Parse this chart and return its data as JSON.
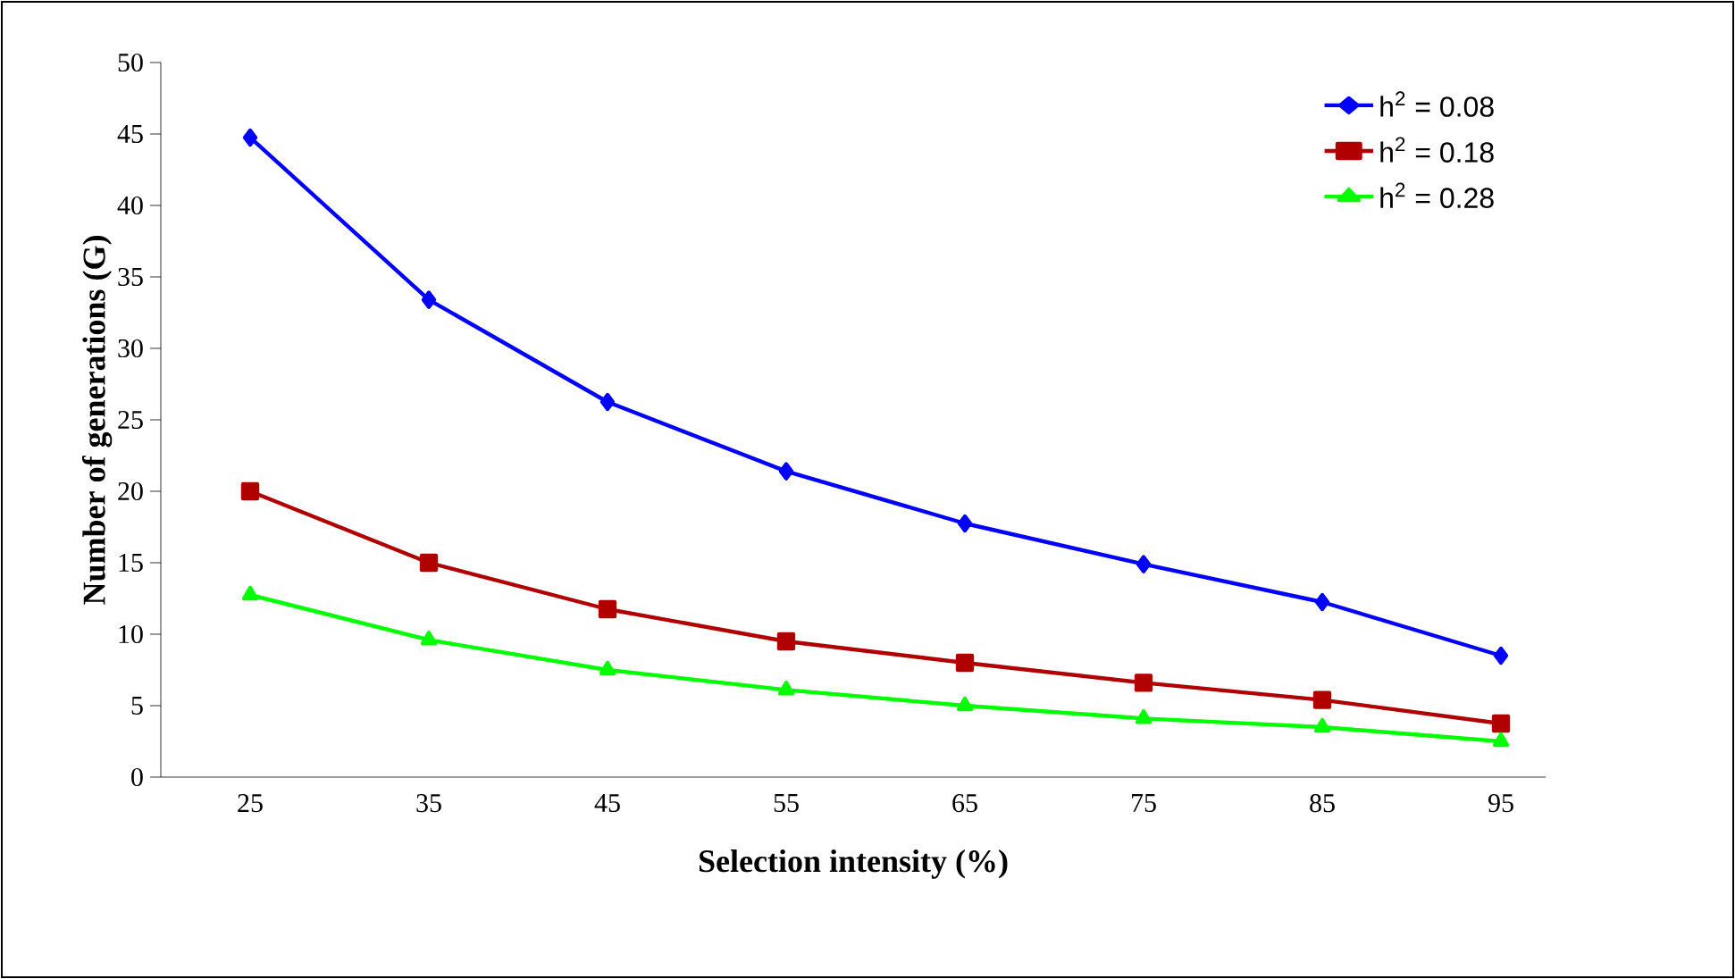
{
  "chart_data": {
    "type": "line",
    "xlabel": "Selection intensity (%)",
    "ylabel": "Number of generations (G)",
    "categories": [
      "25",
      "35",
      "45",
      "55",
      "65",
      "75",
      "85",
      "95"
    ],
    "series": [
      {
        "name": "h$^{2}$ = 0.08",
        "color": "#0000ff",
        "marker": "diamond",
        "values": [
          44.75,
          33.4,
          26.25,
          21.4,
          17.75,
          14.9,
          12.25,
          8.5
        ]
      },
      {
        "name": "h$^{2}$ = 0.18",
        "color": "#b00000",
        "marker": "square",
        "values": [
          20,
          15,
          11.75,
          9.5,
          8,
          6.6,
          5.4,
          3.75
        ]
      },
      {
        "name": "h$^{2}$ = 0.28",
        "color": "#00ff00",
        "marker": "triangle",
        "values": [
          12.75,
          9.6,
          7.5,
          6.1,
          5,
          4.1,
          3.5,
          2.5
        ]
      }
    ],
    "ylim": [
      0,
      50
    ],
    "yticks": [
      0,
      5,
      10,
      15,
      20,
      25,
      30,
      35,
      40,
      45,
      50
    ],
    "grid": false,
    "legend": "top right",
    "line_style": "solid"
  }
}
